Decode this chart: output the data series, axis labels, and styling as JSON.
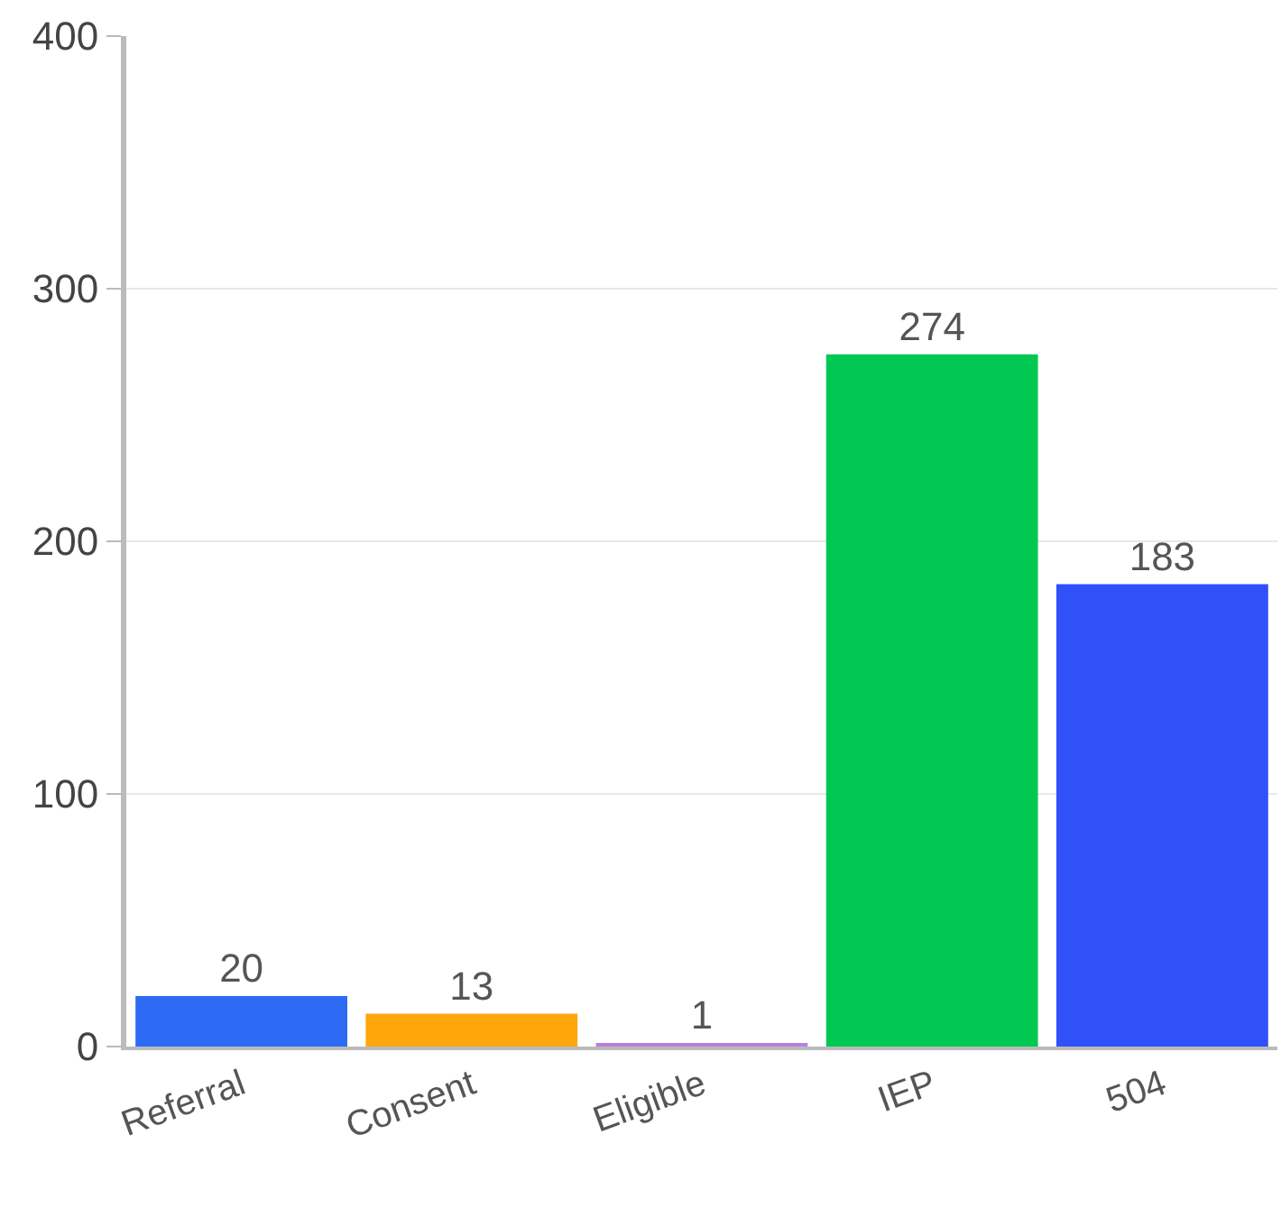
{
  "chart_data": {
    "type": "bar",
    "categories": [
      "Referral",
      "Consent",
      "Eligible",
      "IEP",
      "504"
    ],
    "values": [
      20,
      13,
      1,
      274,
      183
    ],
    "colors": [
      "#2d6bf5",
      "#ffa60d",
      "#b87fe0",
      "#00c853",
      "#3050fa"
    ],
    "ylim": [
      0,
      400
    ],
    "yticks": [
      0,
      100,
      200,
      300,
      400
    ],
    "grid": "y",
    "data_labels": true
  }
}
